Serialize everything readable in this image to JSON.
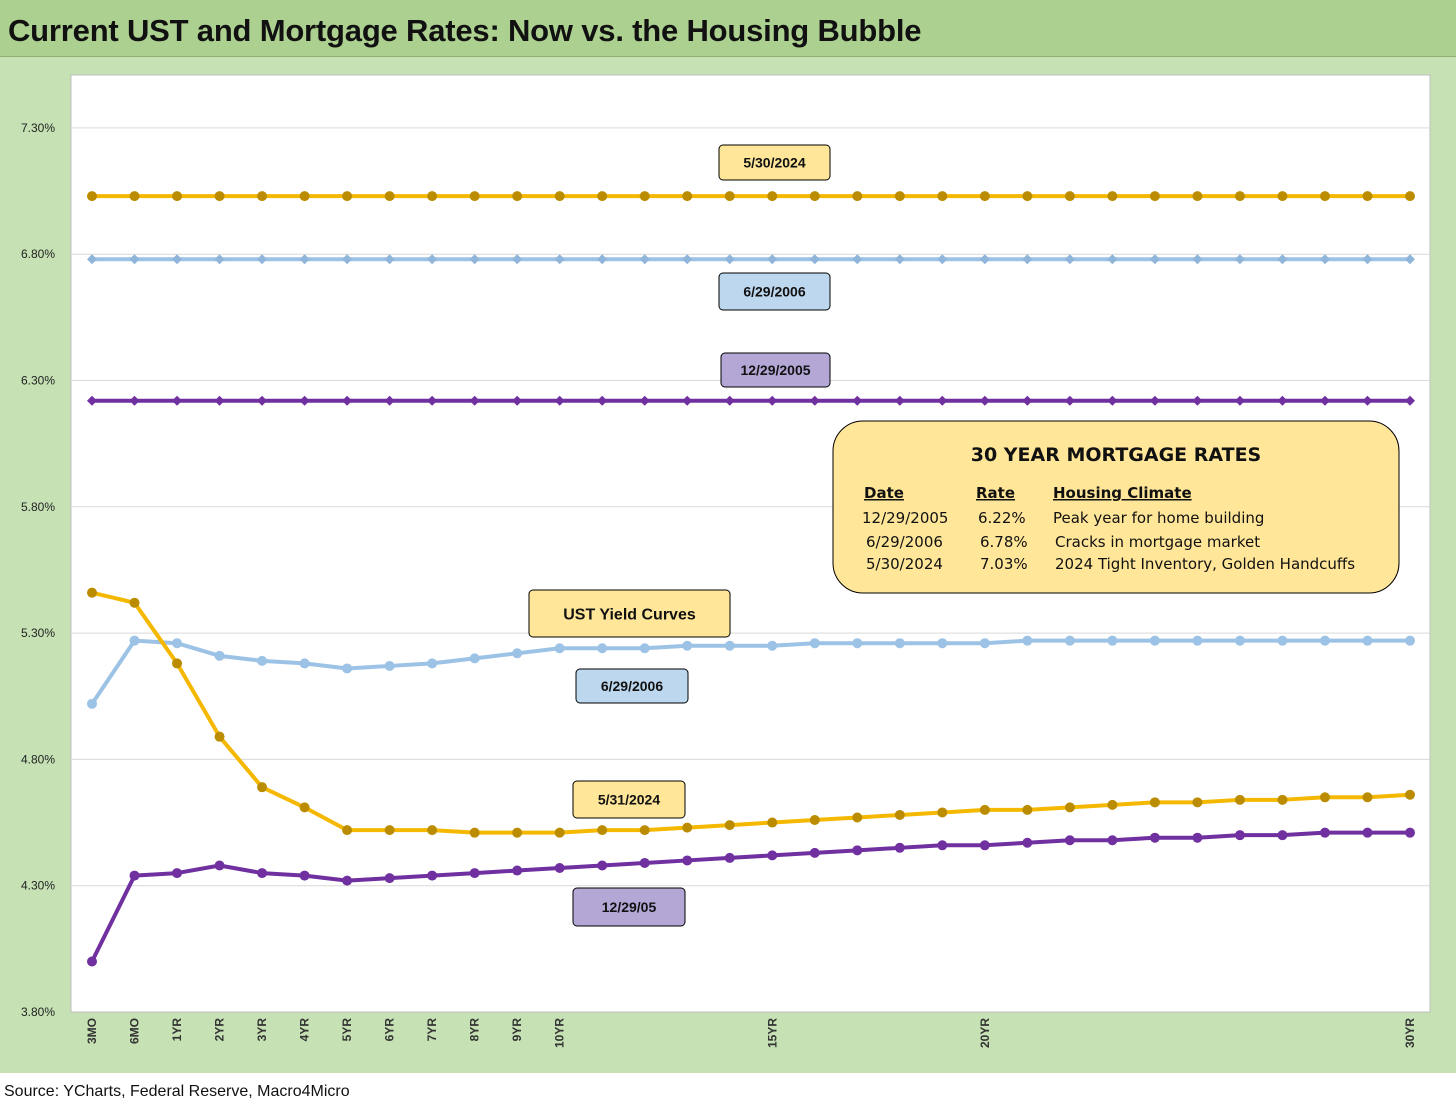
{
  "title": "Current UST and Mortgage Rates: Now vs. the Housing Bubble",
  "source": "Source: YCharts, Federal Reserve, Macro4Micro",
  "chart_data": {
    "type": "line",
    "ylim": [
      3.8,
      7.5
    ],
    "y_ticks": [
      "7.30%",
      "6.80%",
      "6.30%",
      "5.80%",
      "5.30%",
      "4.80%",
      "4.30%",
      "3.80%"
    ],
    "y_tick_values": [
      7.3,
      6.8,
      6.3,
      5.8,
      5.3,
      4.8,
      4.3,
      3.8
    ],
    "x_labels": [
      "3MO",
      "6MO",
      "1YR",
      "2YR",
      "3YR",
      "4YR",
      "5YR",
      "6YR",
      "7YR",
      "8YR",
      "9YR",
      "10YR",
      "",
      "",
      "",
      "",
      "15YR",
      "",
      "",
      "",
      "",
      "20YR",
      "",
      "",
      "",
      "",
      "",
      "",
      "",
      "",
      "",
      "30YR"
    ],
    "x_positions": [
      0,
      1,
      2,
      3,
      4,
      5,
      6,
      7,
      8,
      9,
      10,
      11,
      12,
      13,
      14,
      15,
      16,
      17,
      18,
      19,
      20,
      21,
      22,
      23,
      24,
      25,
      26,
      27,
      28,
      29,
      30,
      31
    ],
    "series": [
      {
        "key": "mort_2024",
        "color": "#f5b800",
        "marker_color": "#bb8c00",
        "marker": "circle",
        "values": [
          7.03,
          7.03,
          7.03,
          7.03,
          7.03,
          7.03,
          7.03,
          7.03,
          7.03,
          7.03,
          7.03,
          7.03,
          7.03,
          7.03,
          7.03,
          7.03,
          7.03,
          7.03,
          7.03,
          7.03,
          7.03,
          7.03,
          7.03,
          7.03,
          7.03,
          7.03,
          7.03,
          7.03,
          7.03,
          7.03,
          7.03,
          7.03
        ]
      },
      {
        "key": "mort_2006",
        "color": "#9cc2e5",
        "marker_color": "#8fb5da",
        "marker": "diamond",
        "values": [
          6.78,
          6.78,
          6.78,
          6.78,
          6.78,
          6.78,
          6.78,
          6.78,
          6.78,
          6.78,
          6.78,
          6.78,
          6.78,
          6.78,
          6.78,
          6.78,
          6.78,
          6.78,
          6.78,
          6.78,
          6.78,
          6.78,
          6.78,
          6.78,
          6.78,
          6.78,
          6.78,
          6.78,
          6.78,
          6.78,
          6.78,
          6.78
        ]
      },
      {
        "key": "mort_2005",
        "color": "#7030a0",
        "marker_color": "#7030a0",
        "marker": "diamond",
        "values": [
          6.22,
          6.22,
          6.22,
          6.22,
          6.22,
          6.22,
          6.22,
          6.22,
          6.22,
          6.22,
          6.22,
          6.22,
          6.22,
          6.22,
          6.22,
          6.22,
          6.22,
          6.22,
          6.22,
          6.22,
          6.22,
          6.22,
          6.22,
          6.22,
          6.22,
          6.22,
          6.22,
          6.22,
          6.22,
          6.22,
          6.22,
          6.22
        ]
      },
      {
        "key": "ust_2006",
        "color": "#9cc2e5",
        "marker_color": "#9cc2e5",
        "marker": "circle",
        "values": [
          5.02,
          5.27,
          5.26,
          5.21,
          5.19,
          5.18,
          5.16,
          5.17,
          5.18,
          5.2,
          5.22,
          5.24,
          5.24,
          5.24,
          5.25,
          5.25,
          5.25,
          5.26,
          5.26,
          5.26,
          5.26,
          5.26,
          5.27,
          5.27,
          5.27,
          5.27,
          5.27,
          5.27,
          5.27,
          5.27,
          5.27,
          5.27
        ]
      },
      {
        "key": "ust_2024",
        "color": "#f5b800",
        "marker_color": "#bb8c00",
        "marker": "circle",
        "values": [
          5.46,
          5.42,
          5.18,
          4.89,
          4.69,
          4.61,
          4.52,
          4.52,
          4.52,
          4.51,
          4.51,
          4.51,
          4.52,
          4.52,
          4.53,
          4.54,
          4.55,
          4.56,
          4.57,
          4.58,
          4.59,
          4.6,
          4.6,
          4.61,
          4.62,
          4.63,
          4.63,
          4.64,
          4.64,
          4.65,
          4.65,
          4.66
        ]
      },
      {
        "key": "ust_2005",
        "color": "#7030a0",
        "marker_color": "#7030a0",
        "marker": "circle",
        "values": [
          4.0,
          4.34,
          4.35,
          4.38,
          4.35,
          4.34,
          4.32,
          4.33,
          4.34,
          4.35,
          4.36,
          4.37,
          4.38,
          4.39,
          4.4,
          4.41,
          4.42,
          4.43,
          4.44,
          4.45,
          4.46,
          4.46,
          4.47,
          4.48,
          4.48,
          4.49,
          4.49,
          4.5,
          4.5,
          4.51,
          4.51,
          4.51
        ]
      }
    ],
    "callouts": [
      {
        "text": "5/30/2024",
        "fill": "#ffe699"
      },
      {
        "text": "6/29/2006",
        "fill": "#bdd7ee"
      },
      {
        "text": "12/29/2005",
        "fill": "#b4a7d6"
      },
      {
        "text": "UST Yield Curves",
        "fill": "#ffe699"
      },
      {
        "text": "6/29/2006",
        "fill": "#bdd7ee"
      },
      {
        "text": "5/31/2024",
        "fill": "#ffe699"
      },
      {
        "text": "12/29/05",
        "fill": "#b4a7d6"
      }
    ],
    "table": {
      "title": "30 YEAR MORTGAGE RATES",
      "headers": [
        "Date",
        "Rate",
        "Housing Climate"
      ],
      "rows": [
        [
          "12/29/2005",
          "6.22%",
          "Peak year for home building"
        ],
        [
          "6/29/2006",
          "6.78%",
          "Cracks in mortgage market"
        ],
        [
          "5/30/2024",
          "7.03%",
          "2024 Tight Inventory, Golden Handcuffs"
        ]
      ],
      "fill": "#ffe699"
    }
  }
}
